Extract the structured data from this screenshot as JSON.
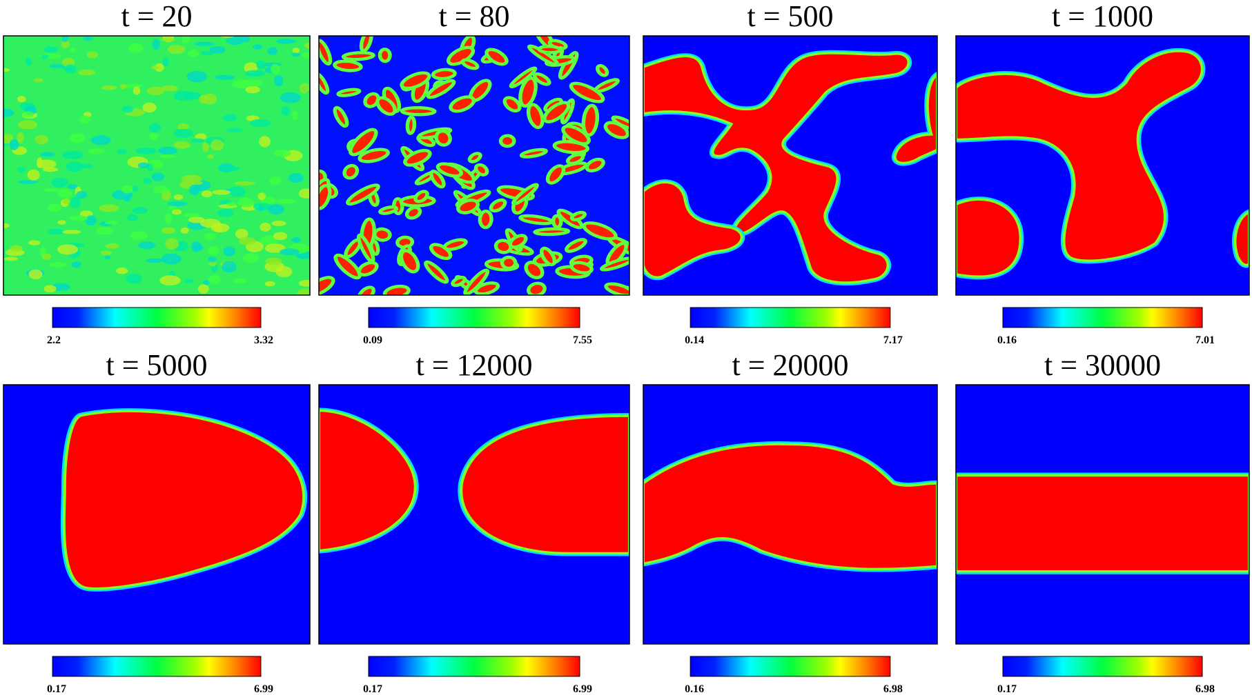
{
  "panels": [
    {
      "title": "t = 20",
      "colorbar": {
        "min": "2.2",
        "max": "3.32"
      }
    },
    {
      "title": "t = 80",
      "colorbar": {
        "min": "0.09",
        "max": "7.55"
      }
    },
    {
      "title": "t = 500",
      "colorbar": {
        "min": "0.14",
        "max": "7.17"
      }
    },
    {
      "title": "t = 1000",
      "colorbar": {
        "min": "0.16",
        "max": "7.01"
      }
    },
    {
      "title": "t = 5000",
      "colorbar": {
        "min": "0.17",
        "max": "6.99"
      }
    },
    {
      "title": "t = 12000",
      "colorbar": {
        "min": "0.17",
        "max": "6.99"
      }
    },
    {
      "title": "t = 20000",
      "colorbar": {
        "min": "0.16",
        "max": "6.98"
      }
    },
    {
      "title": "t = 30000",
      "colorbar": {
        "min": "0.17",
        "max": "6.98"
      }
    }
  ]
}
